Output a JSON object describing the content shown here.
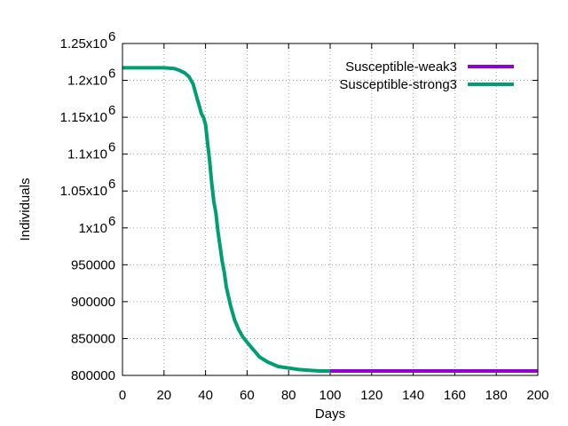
{
  "chart_data": {
    "type": "line",
    "xlabel": "Days",
    "ylabel": "Individuals",
    "xlim": [
      0,
      200
    ],
    "ylim": [
      800000,
      1250000
    ],
    "grid": true,
    "legend_position": "top-right",
    "x_ticks": [
      0,
      20,
      40,
      60,
      80,
      100,
      120,
      140,
      160,
      180,
      200
    ],
    "y_ticks": [
      {
        "value": 800000,
        "label": "800000",
        "exp": ""
      },
      {
        "value": 850000,
        "label": "850000",
        "exp": ""
      },
      {
        "value": 900000,
        "label": "900000",
        "exp": ""
      },
      {
        "value": 950000,
        "label": "950000",
        "exp": ""
      },
      {
        "value": 1000000,
        "label": "1x10",
        "exp": "6"
      },
      {
        "value": 1050000,
        "label": "1.05x10",
        "exp": "6"
      },
      {
        "value": 1100000,
        "label": "1.1x10",
        "exp": "6"
      },
      {
        "value": 1150000,
        "label": "1.15x10",
        "exp": "6"
      },
      {
        "value": 1200000,
        "label": "1.2x10",
        "exp": "6"
      },
      {
        "value": 1250000,
        "label": "1.25x10",
        "exp": "6"
      }
    ],
    "series": [
      {
        "name": "Susceptible-weak3",
        "color": "#9400d3",
        "x": [
          100,
          200
        ],
        "y": [
          806000,
          806000
        ]
      },
      {
        "name": "Susceptible-strong3",
        "color": "#009e73",
        "x": [
          0,
          10,
          20,
          25,
          28,
          30,
          32,
          34,
          35,
          36,
          37,
          38,
          39,
          40,
          41,
          42,
          43,
          44,
          45,
          46,
          47,
          48,
          49,
          50,
          52,
          54,
          56,
          58,
          60,
          63,
          66,
          70,
          75,
          80,
          85,
          90,
          95,
          100
        ],
        "y": [
          1217000,
          1217000,
          1217000,
          1216000,
          1213000,
          1210000,
          1205000,
          1195000,
          1185000,
          1175000,
          1165000,
          1155000,
          1150000,
          1140000,
          1115000,
          1090000,
          1060000,
          1035000,
          1020000,
          995000,
          975000,
          955000,
          940000,
          920000,
          895000,
          875000,
          862000,
          852000,
          845000,
          835000,
          825000,
          818000,
          812000,
          810000,
          808000,
          807000,
          806000,
          806000
        ]
      }
    ]
  }
}
